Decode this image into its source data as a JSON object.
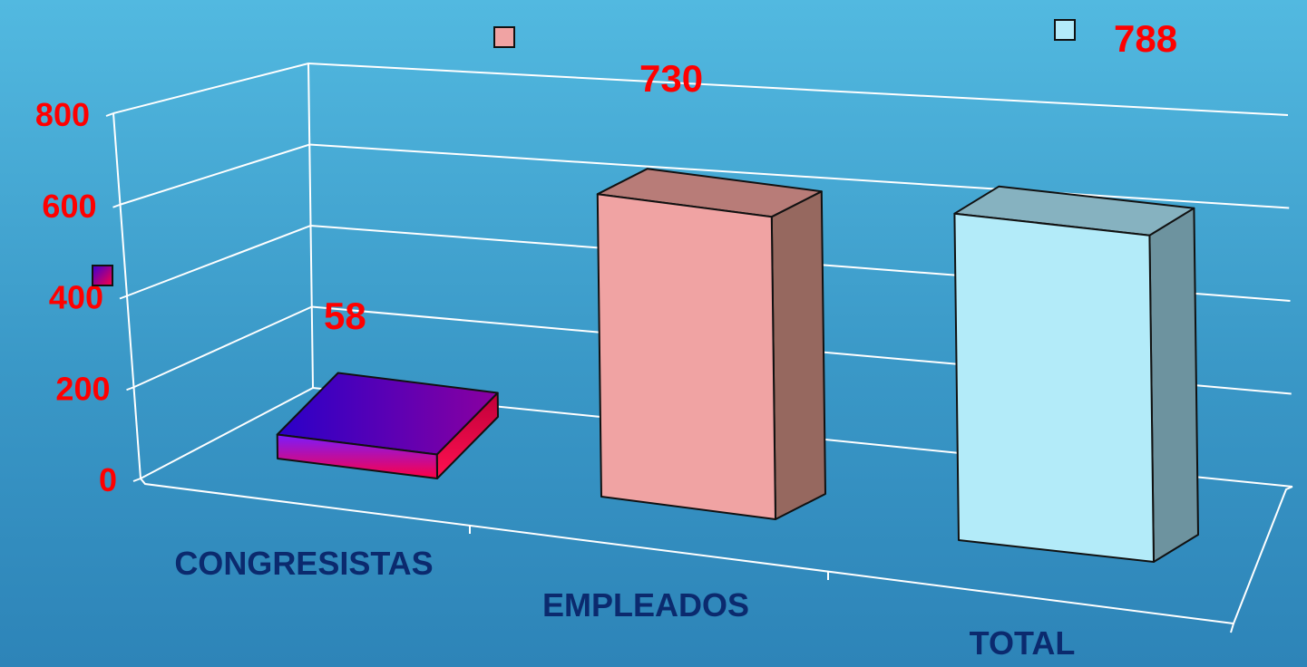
{
  "chart_data": {
    "type": "bar",
    "categories": [
      "CONGRESISTAS",
      "EMPLEADOS",
      "TOTAL"
    ],
    "values": [
      58,
      730,
      788
    ],
    "data_labels": [
      "58",
      "730",
      "788"
    ],
    "ylim": [
      0,
      800
    ],
    "y_ticks": [
      0,
      200,
      400,
      600,
      800
    ],
    "y_tick_labels": [
      "0",
      "200",
      "400",
      "600",
      "800"
    ],
    "title": "",
    "xlabel": "",
    "ylabel": "",
    "grid": true,
    "three_d": true,
    "legend_position": "scattered markers near bars",
    "colors": {
      "congresistas_gradient": [
        "#3a00d4",
        "#ff0044"
      ],
      "empleados": "#f0a3a3",
      "total": "#b3ebf9",
      "labels": "#ff0000",
      "categories": "#0b2a6e",
      "gridline": "#ffffff"
    }
  }
}
